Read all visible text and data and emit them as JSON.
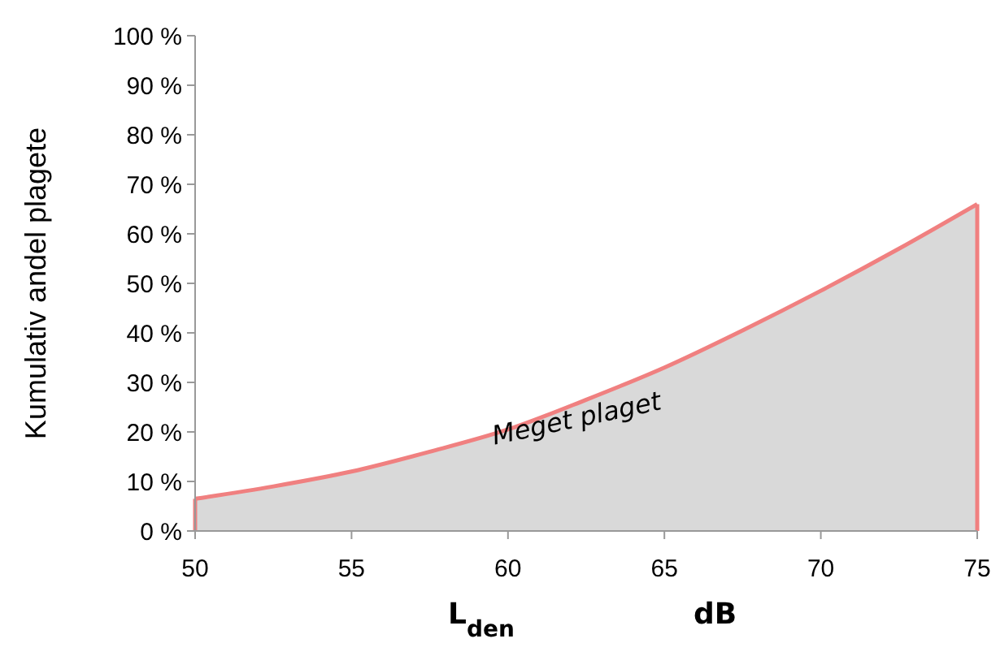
{
  "chart_data": {
    "type": "area",
    "ylabel": "Kumulativ andel plagete",
    "xlabel": "L$_{den}$ dB",
    "x": [
      50,
      52.5,
      55,
      57.5,
      60,
      62.5,
      65,
      67.5,
      70,
      72.5,
      75
    ],
    "series": [
      {
        "color": "#f08080",
        "values": [
          6.5,
          9,
          12,
          16,
          20.5,
          26.5,
          33,
          40.5,
          48.5,
          57,
          66
        ]
      }
    ],
    "xlim": [
      50,
      75
    ],
    "xticks": [
      50,
      55,
      60,
      65,
      70,
      75
    ],
    "ylim": [
      0,
      100
    ],
    "yticks": [
      {
        "value": 0,
        "label": "0 %"
      },
      {
        "value": 10,
        "label": "10 %"
      },
      {
        "value": 20,
        "label": "20 %"
      },
      {
        "value": 30,
        "label": "30 %"
      },
      {
        "value": 40,
        "label": "40 %"
      },
      {
        "value": 50,
        "label": "50 %"
      },
      {
        "value": 60,
        "label": "60 %"
      },
      {
        "value": 70,
        "label": "70 %"
      },
      {
        "value": 80,
        "label": "80 %"
      },
      {
        "value": 90,
        "label": "90 %"
      },
      {
        "value": 100,
        "label": "100 %"
      }
    ],
    "annotations": [
      "Meget plaget"
    ]
  }
}
